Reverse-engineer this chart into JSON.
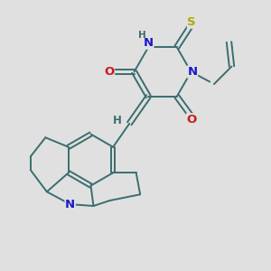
{
  "background_color": "#e0e0e0",
  "bond_color": "#3a6e6e",
  "atom_colors": {
    "N": "#1a1acc",
    "O": "#cc1a1a",
    "S": "#aaaa00",
    "H": "#3a6e6e",
    "C": "#3a6e6e"
  },
  "figsize": [
    3.0,
    3.0
  ],
  "dpi": 100,
  "lw": 1.4,
  "fs": 8.5
}
